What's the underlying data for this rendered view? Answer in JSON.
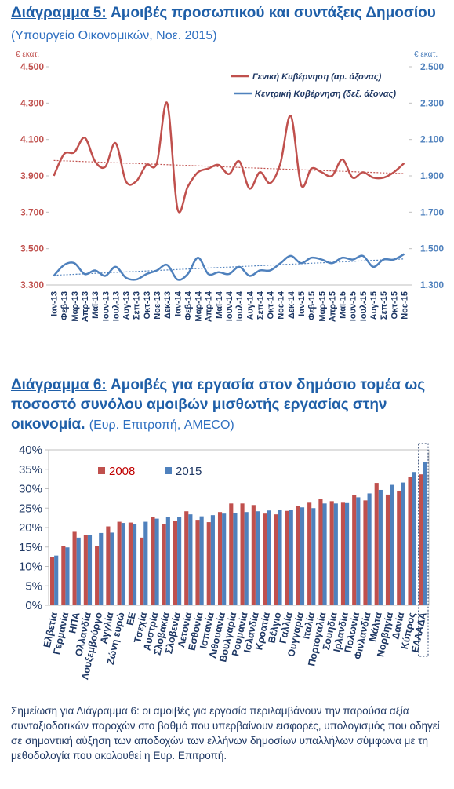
{
  "chart_data": [
    {
      "type": "line",
      "title_label": "Διάγραμμα 5:",
      "title": "Αμοιβές προσωπικού και συντάξεις Δημοσίου",
      "subtitle": "(Υπουργείο Οικονομικών, Νοε. 2015)",
      "ylabel": "€ εκατ.",
      "y2label": "€ εκατ.",
      "categories": [
        "Ιαν-13",
        "Φεβ-13",
        "Μαρ-13",
        "Απρ-13",
        "Μαϊ-13",
        "Ιουν-13",
        "Ιουλ-13",
        "Αυγ-13",
        "Σεπ-13",
        "Οκτ-13",
        "Νοε-13",
        "Δεκ-13",
        "Ιαν-14",
        "Φεβ-14",
        "Μαρ-14",
        "Απρ-14",
        "Μαϊ-14",
        "Ιουν-14",
        "Ιουλ-14",
        "Αυγ-14",
        "Σεπ-14",
        "Οκτ-14",
        "Νοε-14",
        "Δεκ-14",
        "Ιαν-15",
        "Φεβ-15",
        "Μαρ-15",
        "Απρ-15",
        "Μαϊ-15",
        "Ιουν-15",
        "Ιουλ-15",
        "Αυγ-15",
        "Σεπ-15",
        "Οκτ-15",
        "Νοε-15"
      ],
      "series": [
        {
          "name": "Γενική Κυβέρνηση (αρ. άξονας)",
          "color": "#c0504d",
          "values": [
            3900,
            4020,
            4030,
            4110,
            3980,
            3950,
            4080,
            3870,
            3870,
            3960,
            3970,
            4300,
            3720,
            3840,
            3920,
            3940,
            3960,
            3910,
            3980,
            3830,
            3920,
            3860,
            3970,
            4230,
            3850,
            3940,
            3920,
            3900,
            3990,
            3890,
            3920,
            3890,
            3890,
            3920,
            3970
          ]
        },
        {
          "name": "Κεντρική Κυβέρνηση (δεξ. άξονας)",
          "color": "#4f81bd",
          "axis": "y2",
          "values": [
            1350,
            1410,
            1420,
            1360,
            1380,
            1350,
            1400,
            1340,
            1330,
            1360,
            1380,
            1410,
            1330,
            1360,
            1450,
            1360,
            1370,
            1360,
            1400,
            1350,
            1380,
            1380,
            1420,
            1460,
            1420,
            1450,
            1440,
            1420,
            1450,
            1440,
            1460,
            1400,
            1440,
            1440,
            1470
          ]
        }
      ],
      "ylim": [
        3300,
        4500
      ],
      "yticks": [
        {
          "value": 3300,
          "label": "3.300"
        },
        {
          "value": 3500,
          "label": "3.500"
        },
        {
          "value": 3700,
          "label": "3.700"
        },
        {
          "value": 3900,
          "label": "3.900"
        },
        {
          "value": 4100,
          "label": "4.100"
        },
        {
          "value": 4300,
          "label": "4.300"
        },
        {
          "value": 4500,
          "label": "4.500"
        }
      ],
      "y2lim": [
        1300,
        2500
      ],
      "y2ticks": [
        {
          "value": 1300,
          "label": "1.300"
        },
        {
          "value": 1500,
          "label": "1.500"
        },
        {
          "value": 1700,
          "label": "1.700"
        },
        {
          "value": 1900,
          "label": "1.900"
        },
        {
          "value": 2100,
          "label": "2.100"
        },
        {
          "value": 2300,
          "label": "2.300"
        },
        {
          "value": 2500,
          "label": "2.500"
        }
      ],
      "trendline": true,
      "grid": false,
      "legend": "upper right"
    },
    {
      "type": "bar",
      "title_label": "Διάγραμμα  6:",
      "title": "Αμοιβές για εργασία στον δημόσιο τομέα ως ποσοστό συνόλου αμοιβών μισθωτής εργασίας στην οικονομία.",
      "subtitle": "(Ευρ. Επιτροπή, AMECO)",
      "categories": [
        "Ελβετία",
        "Γερμανία",
        "ΗΠΑ",
        "Ολλανδία",
        "Λουξεμβούργο",
        "Αγγλία",
        "Ζώνη ευρώ",
        "ΕΕ",
        "Τσεχία",
        "Αυστρία",
        "Σλοβακία",
        "Σλοβενία",
        "Λετονία",
        "Εσθονία",
        "Ισπανία",
        "Λιθουανία",
        "Βουλγαρία",
        "Ρουμανία",
        "Ισλανδία",
        "Κροατία",
        "Βέλγιο",
        "Γαλλία",
        "Ουγγαρία",
        "Ιταλία",
        "Πορτογαλία",
        "Σουηδία",
        "Ιρλανδία",
        "Πολωνία",
        "Φινλανδία",
        "Μάλτα",
        "Νορβηγία",
        "Δανία",
        "Κύπρος",
        "ΕΛΛΑΔΑ"
      ],
      "series": [
        {
          "name": "2008",
          "color": "#c0504d",
          "values": [
            12.5,
            15.2,
            18.9,
            18.0,
            15.2,
            20.3,
            21.5,
            21.3,
            17.4,
            22.8,
            21.0,
            21.7,
            24.2,
            22.0,
            21.4,
            24.0,
            26.2,
            26.2,
            25.8,
            23.6,
            23.4,
            24.3,
            25.6,
            26.4,
            27.3,
            26.8,
            26.4,
            28.3,
            27.0,
            31.5,
            28.5,
            29.5,
            33.0,
            33.7
          ]
        },
        {
          "name": "2015",
          "color": "#4f81bd",
          "values": [
            12.8,
            14.9,
            17.4,
            18.1,
            18.6,
            18.7,
            21.2,
            21.0,
            21.5,
            22.3,
            22.7,
            22.8,
            23.4,
            22.9,
            23.2,
            23.6,
            23.8,
            24.0,
            24.2,
            24.4,
            24.5,
            24.5,
            25.2,
            25.0,
            26.2,
            26.2,
            26.3,
            27.8,
            28.8,
            29.7,
            31.0,
            31.6,
            34.3,
            36.8
          ]
        }
      ],
      "ylim": [
        0,
        40
      ],
      "yticks": [
        {
          "value": 0,
          "label": "0%"
        },
        {
          "value": 5,
          "label": "5%"
        },
        {
          "value": 10,
          "label": "10%"
        },
        {
          "value": 15,
          "label": "15%"
        },
        {
          "value": 20,
          "label": "20%"
        },
        {
          "value": 25,
          "label": "25%"
        },
        {
          "value": 30,
          "label": "30%"
        },
        {
          "value": 35,
          "label": "35%"
        },
        {
          "value": 40,
          "label": "40%"
        }
      ],
      "grid": false,
      "legend": "upper left"
    }
  ],
  "note": "Σημείωση για  Διάγραμμα  6: οι αμοιβές για εργασία περιλαμβάνουν την παρούσα αξία συνταξιοδοτικών παροχών στο βαθμό που υπερβαίνουν εισφορές, υπολογισμός που οδηγεί σε σημαντική αύξηση των αποδοχών των ελλήνων δημοσίων υπαλλήλων σύμφωνα με τη μεθοδολογία που ακολουθεί η Ευρ. Επιτροπή."
}
